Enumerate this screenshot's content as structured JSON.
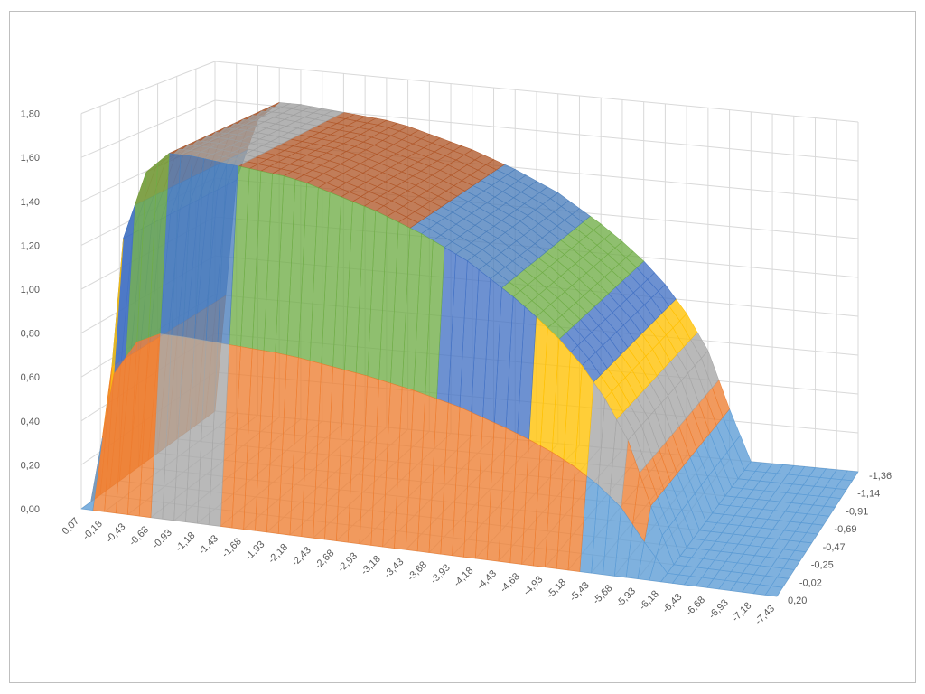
{
  "chart_data": {
    "type": "surface",
    "title": "",
    "x_categories": [
      "0,07",
      "-0,18",
      "-0,43",
      "-0,68",
      "-0,93",
      "-1,18",
      "-1,43",
      "-1,68",
      "-1,93",
      "-2,18",
      "-2,43",
      "-2,68",
      "-2,93",
      "-3,18",
      "-3,43",
      "-3,68",
      "-3,93",
      "-4,18",
      "-4,43",
      "-4,68",
      "-4,93",
      "-5,18",
      "-5,43",
      "-5,68",
      "-5,93",
      "-6,18",
      "-6,43",
      "-6,68",
      "-6,93",
      "-7,18",
      "-7,43"
    ],
    "depth_categories": [
      "0,20",
      "-0,02",
      "-0,25",
      "-0,47",
      "-0,69",
      "-0,91",
      "-1,14",
      "-1,36"
    ],
    "z_ticks": [
      "0,00",
      "0,20",
      "0,40",
      "0,60",
      "0,80",
      "1,00",
      "1,20",
      "1,40",
      "1,60",
      "1,80"
    ],
    "zlim": [
      0,
      1.8
    ],
    "z_profile_by_x": [
      0,
      1.2,
      1.52,
      1.62,
      1.62,
      1.61,
      1.6,
      1.59,
      1.58,
      1.56,
      1.53,
      1.5,
      1.47,
      1.43,
      1.39,
      1.34,
      1.29,
      1.22,
      1.15,
      1.07,
      0.98,
      0.87,
      0.73,
      0.55,
      0.26,
      0,
      0,
      0,
      0,
      0,
      0
    ],
    "z_factor_by_depth": [
      0,
      1,
      1,
      1,
      1,
      1,
      1,
      1
    ],
    "band_colors": [
      "#5b9bd5",
      "#ed7d31",
      "#a5a5a5",
      "#ffc000",
      "#4472c4",
      "#70ad47",
      "#4a7ebb",
      "#b0582a",
      "#9e9e9e"
    ],
    "grid": true,
    "legend": "none"
  }
}
